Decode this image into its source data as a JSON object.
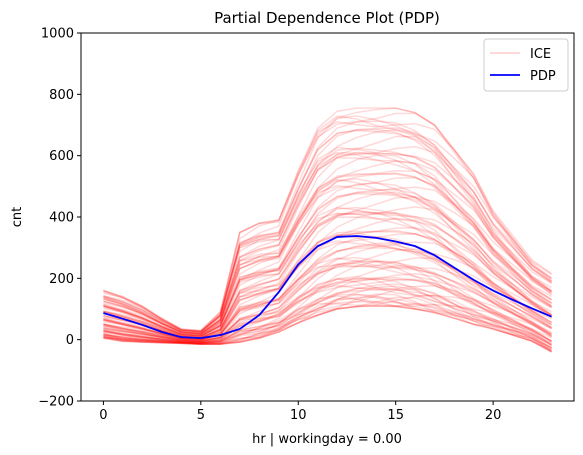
{
  "chart_data": {
    "type": "line",
    "title": "Partial Dependence Plot (PDP)",
    "xlabel": "hr | workingday = 0.00",
    "ylabel": "cnt",
    "xlim": [
      -1.15,
      24.15
    ],
    "ylim": [
      -200,
      1000
    ],
    "xticks": [
      0,
      5,
      10,
      15,
      20
    ],
    "yticks": [
      -200,
      0,
      200,
      400,
      600,
      800,
      1000
    ],
    "grid": false,
    "legend_position": "top-right",
    "legend": [
      {
        "label": "ICE",
        "color": "#ff0000",
        "alpha": 0.15
      },
      {
        "label": "PDP",
        "color": "#0000ff"
      }
    ],
    "x": [
      0,
      1,
      2,
      3,
      4,
      5,
      6,
      7,
      8,
      9,
      10,
      11,
      12,
      13,
      14,
      15,
      16,
      17,
      18,
      19,
      20,
      21,
      22,
      23
    ],
    "series": [
      {
        "name": "PDP",
        "color": "#0000ff",
        "values": [
          87,
          68,
          48,
          25,
          8,
          5,
          15,
          35,
          80,
          155,
          245,
          305,
          335,
          338,
          332,
          320,
          305,
          275,
          235,
          195,
          160,
          130,
          102,
          75
        ]
      }
    ],
    "ice_summary": {
      "color": "#ff0000",
      "alpha": 0.15,
      "low": [
        5,
        -5,
        -8,
        -10,
        -12,
        -15,
        -15,
        -8,
        5,
        25,
        55,
        80,
        100,
        108,
        110,
        108,
        100,
        88,
        70,
        50,
        35,
        15,
        -5,
        -40
      ],
      "high": [
        160,
        140,
        110,
        70,
        35,
        30,
        90,
        350,
        380,
        390,
        550,
        690,
        745,
        755,
        755,
        755,
        740,
        700,
        620,
        540,
        420,
        340,
        260,
        215
      ]
    }
  }
}
